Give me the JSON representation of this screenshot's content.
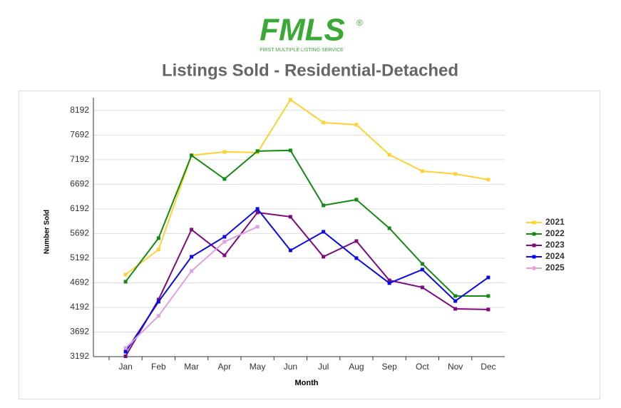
{
  "logo": {
    "text": "FMLS",
    "mark": "®",
    "tagline": "FIRST MULTIPLE LISTING SERVICE"
  },
  "chart_data": {
    "type": "line",
    "title": "Listings Sold - Residential-Detached",
    "x_label": "Month",
    "y_label": "Number Sold",
    "categories": [
      "Jan",
      "Feb",
      "Mar",
      "Apr",
      "May",
      "Jun",
      "Jul",
      "Aug",
      "Sep",
      "Oct",
      "Nov",
      "Dec"
    ],
    "ylim": [
      3192,
      8450
    ],
    "yticks": [
      3192,
      3692,
      4192,
      4692,
      5192,
      5692,
      6192,
      6692,
      7192,
      7692,
      8192
    ],
    "grid": true,
    "legend": "right",
    "series": [
      {
        "name": "2021",
        "color": "#fcd234",
        "values": [
          4859,
          5366,
          7279,
          7351,
          7337,
          8409,
          7945,
          7902,
          7293,
          6960,
          6902,
          6786
        ]
      },
      {
        "name": "2022",
        "color": "#148a14",
        "values": [
          4714,
          5598,
          7279,
          6800,
          7366,
          7380,
          6264,
          6380,
          5800,
          5076,
          4424,
          4424
        ]
      },
      {
        "name": "2023",
        "color": "#7d0a7d",
        "values": [
          3200,
          4351,
          5771,
          5250,
          6119,
          6032,
          5221,
          5539,
          4742,
          4598,
          4163,
          4149
        ]
      },
      {
        "name": "2024",
        "color": "#0a0ae6",
        "values": [
          3293,
          4308,
          5221,
          5626,
          6192,
          5351,
          5728,
          5192,
          4685,
          4960,
          4322,
          4800
        ]
      },
      {
        "name": "2025",
        "color": "#dea0de",
        "values": [
          3366,
          4018,
          4931,
          5525,
          5829,
          null,
          null,
          null,
          null,
          null,
          null,
          null
        ]
      }
    ]
  }
}
